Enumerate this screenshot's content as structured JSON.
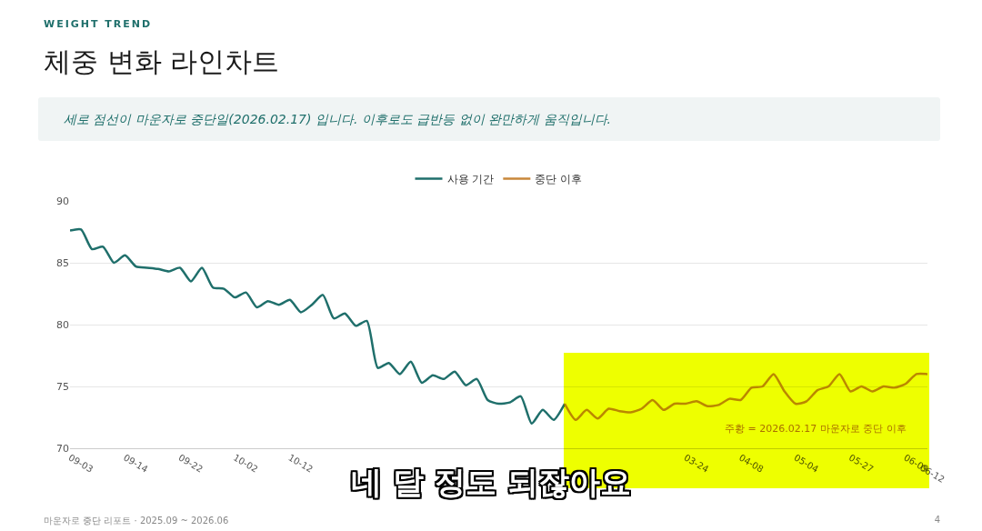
{
  "header": "WEIGHT TREND",
  "title": "체중 변화 라인차트",
  "note": "세로 점선이 마운자로 중단일(2026.02.17) 입니다. 이후로도 급반등 없이 완만하게 움직입니다.",
  "caption": "네 달 정도 되잖아요",
  "footer": "마운자로 중단 리포트 · 2025.09 ~ 2026.06",
  "page": 4,
  "chart_data": {
    "type": "line",
    "categories": [
      "09-03",
      null,
      null,
      null,
      null,
      "09-14",
      null,
      null,
      null,
      null,
      "09-22",
      null,
      null,
      null,
      null,
      "10-02",
      null,
      null,
      null,
      null,
      "10-12",
      null,
      null,
      null,
      null,
      null,
      null,
      null,
      null,
      null,
      null,
      null,
      null,
      null,
      null,
      null,
      null,
      null,
      null,
      null,
      null,
      null,
      null,
      null,
      null,
      null,
      null,
      null,
      null,
      null,
      null,
      null,
      null,
      null,
      null,
      null,
      "03-24",
      null,
      null,
      null,
      null,
      "04-08",
      null,
      null,
      null,
      null,
      "05-04",
      null,
      null,
      null,
      null,
      "05-27",
      null,
      null,
      null,
      null,
      "06-09",
      null,
      "06-12"
    ],
    "series": [
      {
        "name": "사용 기간",
        "color": "#1f6f6b",
        "values": [
          87.6,
          87.7,
          86.1,
          86.3,
          85.0,
          85.6,
          84.7,
          84.6,
          84.5,
          84.3,
          84.6,
          83.5,
          84.6,
          83.0,
          82.9,
          82.2,
          82.6,
          81.4,
          81.9,
          81.6,
          82.0,
          81.0,
          81.6,
          82.4,
          80.5,
          80.9,
          79.9,
          80.3,
          76.5,
          76.9,
          76.0,
          77.0,
          75.3,
          75.9,
          75.6,
          76.2,
          75.1,
          75.6,
          73.9,
          73.6,
          73.7,
          74.2,
          72.0,
          73.1,
          72.3,
          73.6,
          null,
          null,
          null,
          null,
          null,
          null,
          null,
          null,
          null,
          null,
          null,
          null,
          null,
          null,
          null,
          null,
          null,
          null,
          null,
          null,
          null,
          null,
          null,
          null,
          null,
          null,
          null,
          null,
          null,
          null,
          null,
          null,
          null
        ]
      },
      {
        "name": "중단 이후",
        "color": "#c8873a",
        "values": [
          null,
          null,
          null,
          null,
          null,
          null,
          null,
          null,
          null,
          null,
          null,
          null,
          null,
          null,
          null,
          null,
          null,
          null,
          null,
          null,
          null,
          null,
          null,
          null,
          null,
          null,
          null,
          null,
          null,
          null,
          null,
          null,
          null,
          null,
          null,
          null,
          null,
          null,
          null,
          null,
          null,
          null,
          null,
          null,
          null,
          73.6,
          72.3,
          73.1,
          72.4,
          73.2,
          73.0,
          72.9,
          73.2,
          73.9,
          73.1,
          73.6,
          73.6,
          73.8,
          73.4,
          73.5,
          74.0,
          73.9,
          74.9,
          75.0,
          76.0,
          74.6,
          73.6,
          73.8,
          74.7,
          75.0,
          76.0,
          74.6,
          75.0,
          74.6,
          75.0,
          74.9,
          75.2,
          76.0,
          76.0
        ]
      }
    ],
    "ylim": [
      70,
      90
    ],
    "yticks": [
      70,
      75,
      80,
      85,
      90
    ],
    "grid": true,
    "legend": "top",
    "annotations": [
      "주황 = 2026.02.17 마운자로 중단 이후"
    ]
  }
}
